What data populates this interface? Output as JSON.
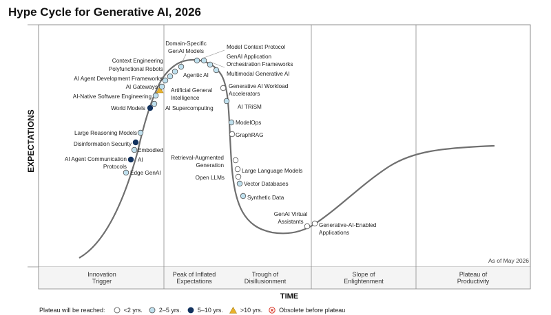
{
  "title": "Hype Cycle for Generative AI, 2026",
  "as_of": "As of May 2026",
  "colors": {
    "lt2": "#ffffff",
    "y2to5": "#bfe0ee",
    "y5to10": "#12325e",
    "gt10": "#e8b12b",
    "obsolete": "#d93a2b",
    "curve": "#6f6f6f",
    "frame": "#8a8a8a"
  },
  "legend": {
    "title": "Plateau will be reached:",
    "items": [
      {
        "key": "lt2",
        "label": "<2 yrs."
      },
      {
        "key": "y2to5",
        "label": "2–5 yrs."
      },
      {
        "key": "y5to10",
        "label": "5–10 yrs."
      },
      {
        "key": "gt10",
        "label": ">10 yrs."
      },
      {
        "key": "obsolete",
        "label": "Obsolete before plateau"
      }
    ]
  },
  "chart_data": {
    "type": "hype-cycle",
    "title": "Hype Cycle for Generative AI, 2026",
    "xlabel": "TIME",
    "ylabel": "EXPECTATIONS",
    "phases": [
      {
        "id": "innovation",
        "label": [
          "Innovation",
          "Trigger"
        ]
      },
      {
        "id": "peak",
        "label": [
          "Peak of Inflated",
          "Expectations"
        ]
      },
      {
        "id": "trough",
        "label": [
          "Trough of",
          "Disillusionment"
        ]
      },
      {
        "id": "slope",
        "label": [
          "Slope of",
          "Enlightenment"
        ]
      },
      {
        "id": "plateau",
        "label": [
          "Plateau of",
          "Productivity"
        ]
      }
    ],
    "technologies": [
      {
        "name": "Edge GenAI",
        "category": "y2to5"
      },
      {
        "name": "AI Agent Communication Protocols",
        "category": "y5to10"
      },
      {
        "name": "Embodied AI",
        "category": "y2to5"
      },
      {
        "name": "Disinformation Security",
        "category": "y5to10"
      },
      {
        "name": "Large Reasoning Models",
        "category": "y2to5"
      },
      {
        "name": "World Models",
        "category": "y5to10"
      },
      {
        "name": "AI Supercomputing",
        "category": "y2to5"
      },
      {
        "name": "AI-Native Software Engineering",
        "category": "y2to5"
      },
      {
        "name": "Artificial General Intelligence",
        "category": "gt10"
      },
      {
        "name": "AI Gateways",
        "category": "y2to5"
      },
      {
        "name": "AI Agent Development Frameworks",
        "category": "y2to5"
      },
      {
        "name": "Polyfunctional Robots",
        "category": "y2to5"
      },
      {
        "name": "Context Engineering",
        "category": "y2to5"
      },
      {
        "name": "Domain-Specific GenAI Models",
        "category": "y2to5"
      },
      {
        "name": "Agentic AI",
        "category": "y2to5"
      },
      {
        "name": "Model Context Protocol",
        "category": "y2to5"
      },
      {
        "name": "GenAI Application Orchestration Frameworks",
        "category": "y2to5"
      },
      {
        "name": "Multimodal Generative AI",
        "category": "y2to5"
      },
      {
        "name": "Generative AI Workload Accelerators",
        "category": "lt2"
      },
      {
        "name": "AI TRiSM",
        "category": "y2to5"
      },
      {
        "name": "ModelOps",
        "category": "y2to5"
      },
      {
        "name": "GraphRAG",
        "category": "lt2"
      },
      {
        "name": "Retrieval-Augmented Generation",
        "category": "lt2"
      },
      {
        "name": "Large Language Models",
        "category": "lt2"
      },
      {
        "name": "Open LLMs",
        "category": "lt2"
      },
      {
        "name": "Vector Databases",
        "category": "y2to5"
      },
      {
        "name": "Synthetic Data",
        "category": "y2to5"
      },
      {
        "name": "GenAI Virtual Assistants",
        "category": "lt2"
      },
      {
        "name": "Generative-AI-Enabled Applications",
        "category": "lt2"
      }
    ]
  }
}
